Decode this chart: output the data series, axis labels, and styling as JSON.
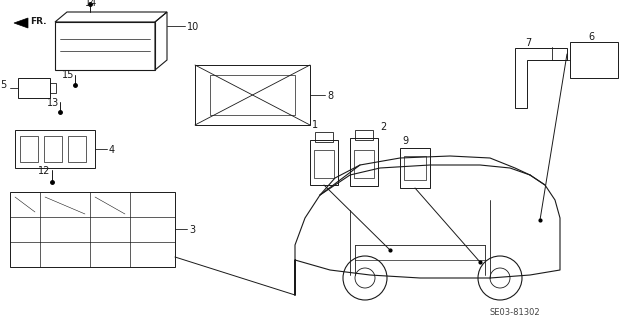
{
  "bg_color": "#ffffff",
  "line_color": "#1a1a1a",
  "diagram_id": "SE03-81302",
  "figsize": [
    6.4,
    3.19
  ],
  "dpi": 100
}
